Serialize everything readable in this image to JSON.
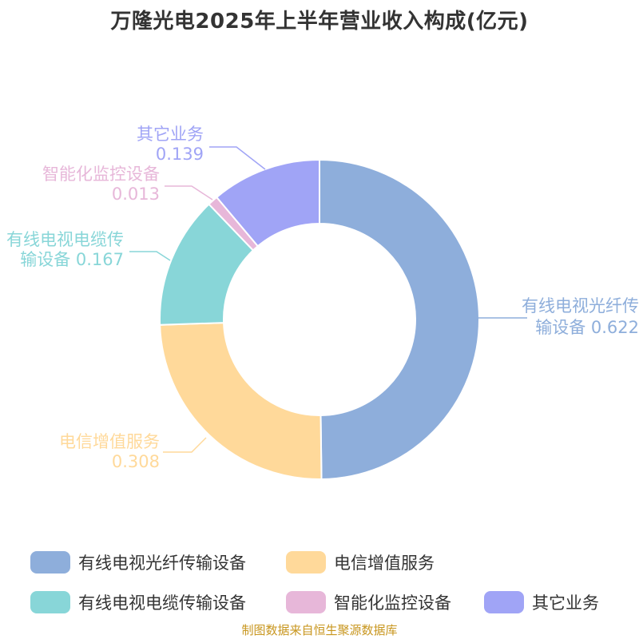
{
  "title": "万隆光电2025年上半年营业收入构成(亿元)",
  "footer": "制图数据来自恒生聚源数据库",
  "chart_data": {
    "type": "pie",
    "variant": "donut",
    "title": "万隆光电2025年上半年营业收入构成(亿元)",
    "start_angle_deg": 90,
    "direction": "clockwise",
    "series": [
      {
        "name": "有线电视光纤传输设备",
        "value": 0.622,
        "color": "#8eaedb",
        "label_lines": [
          "有线电视光纤传",
          "输设备 0.622"
        ]
      },
      {
        "name": "电信增值服务",
        "value": 0.308,
        "color": "#ffd99a",
        "label_lines": [
          "电信增值服务",
          "0.308"
        ]
      },
      {
        "name": "有线电视电缆传输设备",
        "value": 0.167,
        "color": "#88d6d8",
        "label_lines": [
          "有线电视电缆传",
          "输设备 0.167"
        ]
      },
      {
        "name": "智能化监控设备",
        "value": 0.013,
        "color": "#e7b7d9",
        "label_lines": [
          "智能化监控设备",
          "0.013"
        ]
      },
      {
        "name": "其它业务",
        "value": 0.139,
        "color": "#a0a4f6",
        "label_lines": [
          "其它业务",
          "0.139"
        ]
      }
    ],
    "legend": {
      "placement": "bottom",
      "items": [
        "有线电视光纤传输设备",
        "电信增值服务",
        "有线电视电缆传输设备",
        "智能化监控设备",
        "其它业务"
      ]
    }
  }
}
